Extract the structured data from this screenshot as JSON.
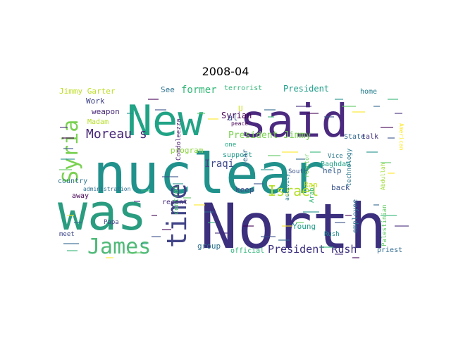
{
  "chart_data": {
    "type": "wordcloud",
    "title": "2008-04",
    "colormap": "viridis",
    "background": "#ffffff",
    "words": [
      {
        "text": "nuclear",
        "color": "#21918c"
      },
      {
        "text": "North",
        "color": "#3b2f7e"
      },
      {
        "text": "was",
        "color": "#2a9c7f"
      },
      {
        "text": "New",
        "color": "#21a386"
      },
      {
        "text": "said",
        "color": "#4b2a7f"
      },
      {
        "text": "time",
        "color": "#414487"
      },
      {
        "text": "James",
        "color": "#4fb978"
      },
      {
        "text": "Syria",
        "color": "#7ad151"
      },
      {
        "text": "Moreau s",
        "color": "#482878"
      },
      {
        "text": "Israel",
        "color": "#b5de2b"
      },
      {
        "text": "President Rush",
        "color": "#3b2f7e"
      },
      {
        "text": "President Jimmy",
        "color": "#7ad151"
      },
      {
        "text": "Iraqi",
        "color": "#3e4a89"
      },
      {
        "text": "former",
        "color": "#35b779"
      },
      {
        "text": "President",
        "color": "#1f9e89"
      },
      {
        "text": "Jimmy Garter",
        "color": "#bddf26"
      },
      {
        "text": "Syrian",
        "color": "#440154"
      },
      {
        "text": "al",
        "color": "#3b528b"
      },
      {
        "text": "terrorist",
        "color": "#35b779"
      },
      {
        "text": "weapon",
        "color": "#482878"
      },
      {
        "text": "program",
        "color": "#8fd744"
      },
      {
        "text": "Work",
        "color": "#414487"
      },
      {
        "text": "Madam",
        "color": "#b8de29"
      },
      {
        "text": "Condoleezza",
        "color": "#481b6d"
      },
      {
        "text": "peace",
        "color": "#440154"
      },
      {
        "text": "U",
        "color": "#cae11f"
      },
      {
        "text": "See",
        "color": "#2c728e"
      },
      {
        "text": "home",
        "color": "#277f8e"
      },
      {
        "text": "State",
        "color": "#31688e"
      },
      {
        "text": "talk",
        "color": "#46337e"
      },
      {
        "text": "Baghdad",
        "color": "#1fa187"
      },
      {
        "text": "help",
        "color": "#365c8d"
      },
      {
        "text": "back",
        "color": "#3b528b"
      },
      {
        "text": "Ran",
        "color": "#c8e020"
      },
      {
        "text": "Arab",
        "color": "#35b779"
      },
      {
        "text": "country",
        "color": "#2c728e"
      },
      {
        "text": "Papa",
        "color": "#414487"
      },
      {
        "text": "control",
        "color": "#4ac16d"
      },
      {
        "text": "support",
        "color": "#1f9a8a"
      },
      {
        "text": "one",
        "color": "#22a884"
      },
      {
        "text": "year",
        "color": "#31688e"
      },
      {
        "text": "keep",
        "color": "#3e4989"
      },
      {
        "text": "group",
        "color": "#2d708e"
      },
      {
        "text": "official",
        "color": "#31b57b"
      },
      {
        "text": "Young",
        "color": "#1f9e89"
      },
      {
        "text": "Rush",
        "color": "#23898e"
      },
      {
        "text": "employee",
        "color": "#2d708e"
      },
      {
        "text": "technology",
        "color": "#2a788e"
      },
      {
        "text": "Palestinian",
        "color": "#5ec962"
      },
      {
        "text": "priest",
        "color": "#306a8e"
      },
      {
        "text": "away",
        "color": "#440154"
      },
      {
        "text": "recent",
        "color": "#472d7b"
      },
      {
        "text": "administration",
        "color": "#2e6f8e"
      },
      {
        "text": "American",
        "color": "#fde725"
      },
      {
        "text": "South",
        "color": "#3b528b"
      },
      {
        "text": "Vice",
        "color": "#2a788e"
      },
      {
        "text": "activity",
        "color": "#26828e"
      },
      {
        "text": "meet",
        "color": "#3e4989"
      },
      {
        "text": "reactor",
        "color": "#6ccd5a"
      },
      {
        "text": "Abdullah",
        "color": "#a0da39"
      }
    ]
  }
}
